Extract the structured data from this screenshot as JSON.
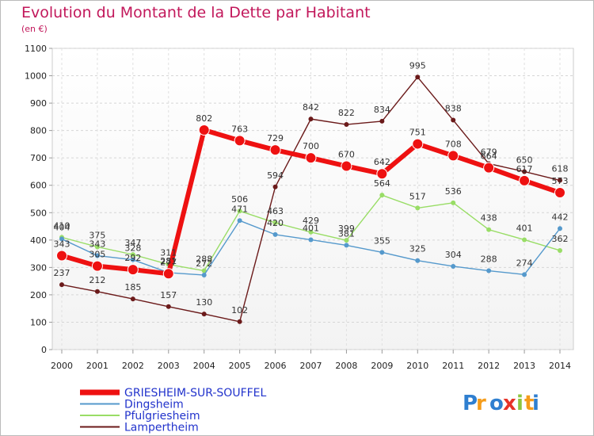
{
  "chart_data": {
    "type": "line",
    "title": "Evolution du Montant de la Dette par Habitant",
    "subtitle": "(en €)",
    "x": [
      "2000",
      "2001",
      "2002",
      "2003",
      "2004",
      "2005",
      "2006",
      "2007",
      "2008",
      "2009",
      "2010",
      "2011",
      "2012",
      "2013",
      "2014"
    ],
    "ylim": [
      0,
      1100
    ],
    "yticks": [
      0,
      100,
      200,
      300,
      400,
      500,
      600,
      700,
      800,
      900,
      1000,
      1100
    ],
    "grid": true,
    "series": [
      {
        "name": "Pfulgriesheim",
        "color": "#99dd66",
        "values": [
          410,
          375,
          347,
          311,
          288,
          506,
          463,
          429,
          399,
          564,
          517,
          536,
          438,
          401,
          362
        ]
      },
      {
        "name": "Dingsheim",
        "color": "#5599cc",
        "values": [
          404,
          343,
          328,
          281,
          272,
          471,
          420,
          401,
          381,
          355,
          325,
          304,
          288,
          274,
          442
        ]
      },
      {
        "name": "Lampertheim",
        "color": "#6b1a1a",
        "values": [
          237,
          212,
          185,
          157,
          130,
          102,
          594,
          842,
          822,
          834,
          995,
          838,
          679,
          650,
          618
        ]
      },
      {
        "name": "GRIESHEIM-SUR-SOUFFEL",
        "color": "#ee1111",
        "values": [
          343,
          305,
          292,
          277,
          802,
          763,
          729,
          700,
          670,
          642,
          751,
          708,
          664,
          617,
          573
        ]
      }
    ]
  },
  "brand": {
    "logo": "Proxiti"
  }
}
